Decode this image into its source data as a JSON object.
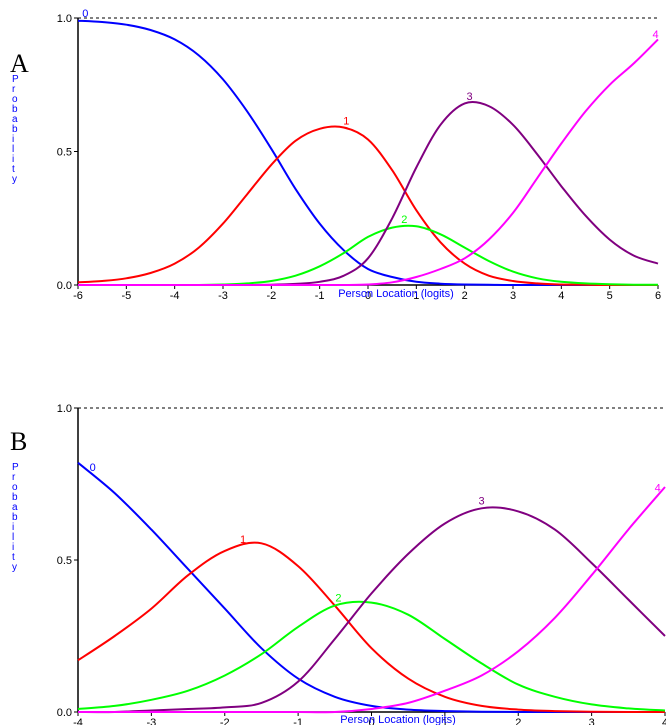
{
  "chart_data": [
    {
      "type": "line",
      "panel_label": "A",
      "xlabel": "Person Location (logits)",
      "ylabel": "Probability",
      "xlim": [
        -6,
        6
      ],
      "ylim": [
        0,
        1
      ],
      "x_ticks": [
        "-6",
        "-5",
        "-4",
        "-3",
        "-2",
        "-1",
        "0",
        "1",
        "2",
        "3",
        "4",
        "5",
        "6"
      ],
      "y_ticks": [
        "0.0",
        "0.5",
        "1.0"
      ],
      "reference_line": {
        "y": 1.0,
        "style": "dashed"
      },
      "grid": false,
      "x": [
        -6,
        -5.5,
        -5,
        -4.5,
        -4,
        -3.5,
        -3,
        -2.5,
        -2,
        -1.5,
        -1,
        -0.5,
        0,
        0.5,
        1,
        1.5,
        2,
        2.5,
        3,
        3.5,
        4,
        4.5,
        5,
        5.5,
        6
      ],
      "series": [
        {
          "name": "0",
          "color": "#0000ff",
          "values": [
            0.99,
            0.985,
            0.975,
            0.955,
            0.92,
            0.86,
            0.77,
            0.65,
            0.51,
            0.36,
            0.23,
            0.13,
            0.06,
            0.03,
            0.012,
            0.005,
            0.002,
            0.001,
            0,
            0,
            0,
            0,
            0,
            0,
            0
          ]
        },
        {
          "name": "1",
          "color": "#ff0000",
          "values": [
            0.01,
            0.015,
            0.025,
            0.045,
            0.08,
            0.14,
            0.23,
            0.34,
            0.45,
            0.54,
            0.585,
            0.59,
            0.545,
            0.43,
            0.28,
            0.16,
            0.08,
            0.035,
            0.015,
            0.006,
            0.002,
            0.001,
            0,
            0,
            0
          ]
        },
        {
          "name": "2",
          "color": "#00ff00",
          "values": [
            0,
            0,
            0,
            0,
            0,
            0,
            0.002,
            0.006,
            0.015,
            0.035,
            0.07,
            0.12,
            0.18,
            0.215,
            0.22,
            0.19,
            0.14,
            0.09,
            0.05,
            0.025,
            0.012,
            0.006,
            0.003,
            0.001,
            0.001
          ]
        },
        {
          "name": "3",
          "color": "#800080",
          "values": [
            0,
            0,
            0,
            0,
            0,
            0,
            0,
            0,
            0.001,
            0.004,
            0.012,
            0.035,
            0.1,
            0.25,
            0.44,
            0.6,
            0.68,
            0.67,
            0.6,
            0.49,
            0.37,
            0.26,
            0.17,
            0.11,
            0.08
          ]
        },
        {
          "name": "4",
          "color": "#ff00ff",
          "values": [
            0,
            0,
            0,
            0,
            0,
            0,
            0,
            0,
            0,
            0,
            0,
            0,
            0.002,
            0.01,
            0.03,
            0.06,
            0.1,
            0.17,
            0.27,
            0.4,
            0.53,
            0.65,
            0.75,
            0.83,
            0.92
          ]
        }
      ]
    },
    {
      "type": "line",
      "panel_label": "B",
      "xlabel": "Person Location (logits)",
      "ylabel": "Probability",
      "xlim": [
        -4,
        4
      ],
      "ylim": [
        0,
        1
      ],
      "x_ticks": [
        "-4",
        "-3",
        "-2",
        "-1",
        "0",
        "1",
        "2",
        "3",
        "4"
      ],
      "y_ticks": [
        "0.0",
        "0.5",
        "1.0"
      ],
      "reference_line": {
        "y": 1.0,
        "style": "dashed"
      },
      "grid": false,
      "x": [
        -4,
        -3.5,
        -3,
        -2.5,
        -2,
        -1.5,
        -1,
        -0.5,
        0,
        0.5,
        1,
        1.5,
        2,
        2.5,
        3,
        3.5,
        4
      ],
      "series": [
        {
          "name": "0",
          "color": "#0000ff",
          "values": [
            0.82,
            0.72,
            0.6,
            0.47,
            0.34,
            0.21,
            0.11,
            0.05,
            0.02,
            0.008,
            0.003,
            0.001,
            0,
            0,
            0,
            0,
            0
          ]
        },
        {
          "name": "1",
          "color": "#ff0000",
          "values": [
            0.17,
            0.25,
            0.34,
            0.45,
            0.53,
            0.555,
            0.48,
            0.35,
            0.21,
            0.11,
            0.05,
            0.02,
            0.008,
            0.003,
            0.001,
            0,
            0
          ]
        },
        {
          "name": "2",
          "color": "#00ff00",
          "values": [
            0.01,
            0.02,
            0.04,
            0.07,
            0.12,
            0.19,
            0.28,
            0.35,
            0.36,
            0.32,
            0.24,
            0.16,
            0.09,
            0.05,
            0.025,
            0.012,
            0.005
          ]
        },
        {
          "name": "3",
          "color": "#800080",
          "values": [
            0,
            0,
            0.005,
            0.01,
            0.015,
            0.03,
            0.1,
            0.24,
            0.39,
            0.52,
            0.62,
            0.67,
            0.66,
            0.6,
            0.49,
            0.37,
            0.25
          ]
        },
        {
          "name": "4",
          "color": "#ff00ff",
          "values": [
            0,
            0,
            0,
            0,
            0,
            0,
            0,
            0,
            0.01,
            0.03,
            0.07,
            0.12,
            0.2,
            0.31,
            0.45,
            0.6,
            0.74
          ]
        }
      ]
    }
  ]
}
